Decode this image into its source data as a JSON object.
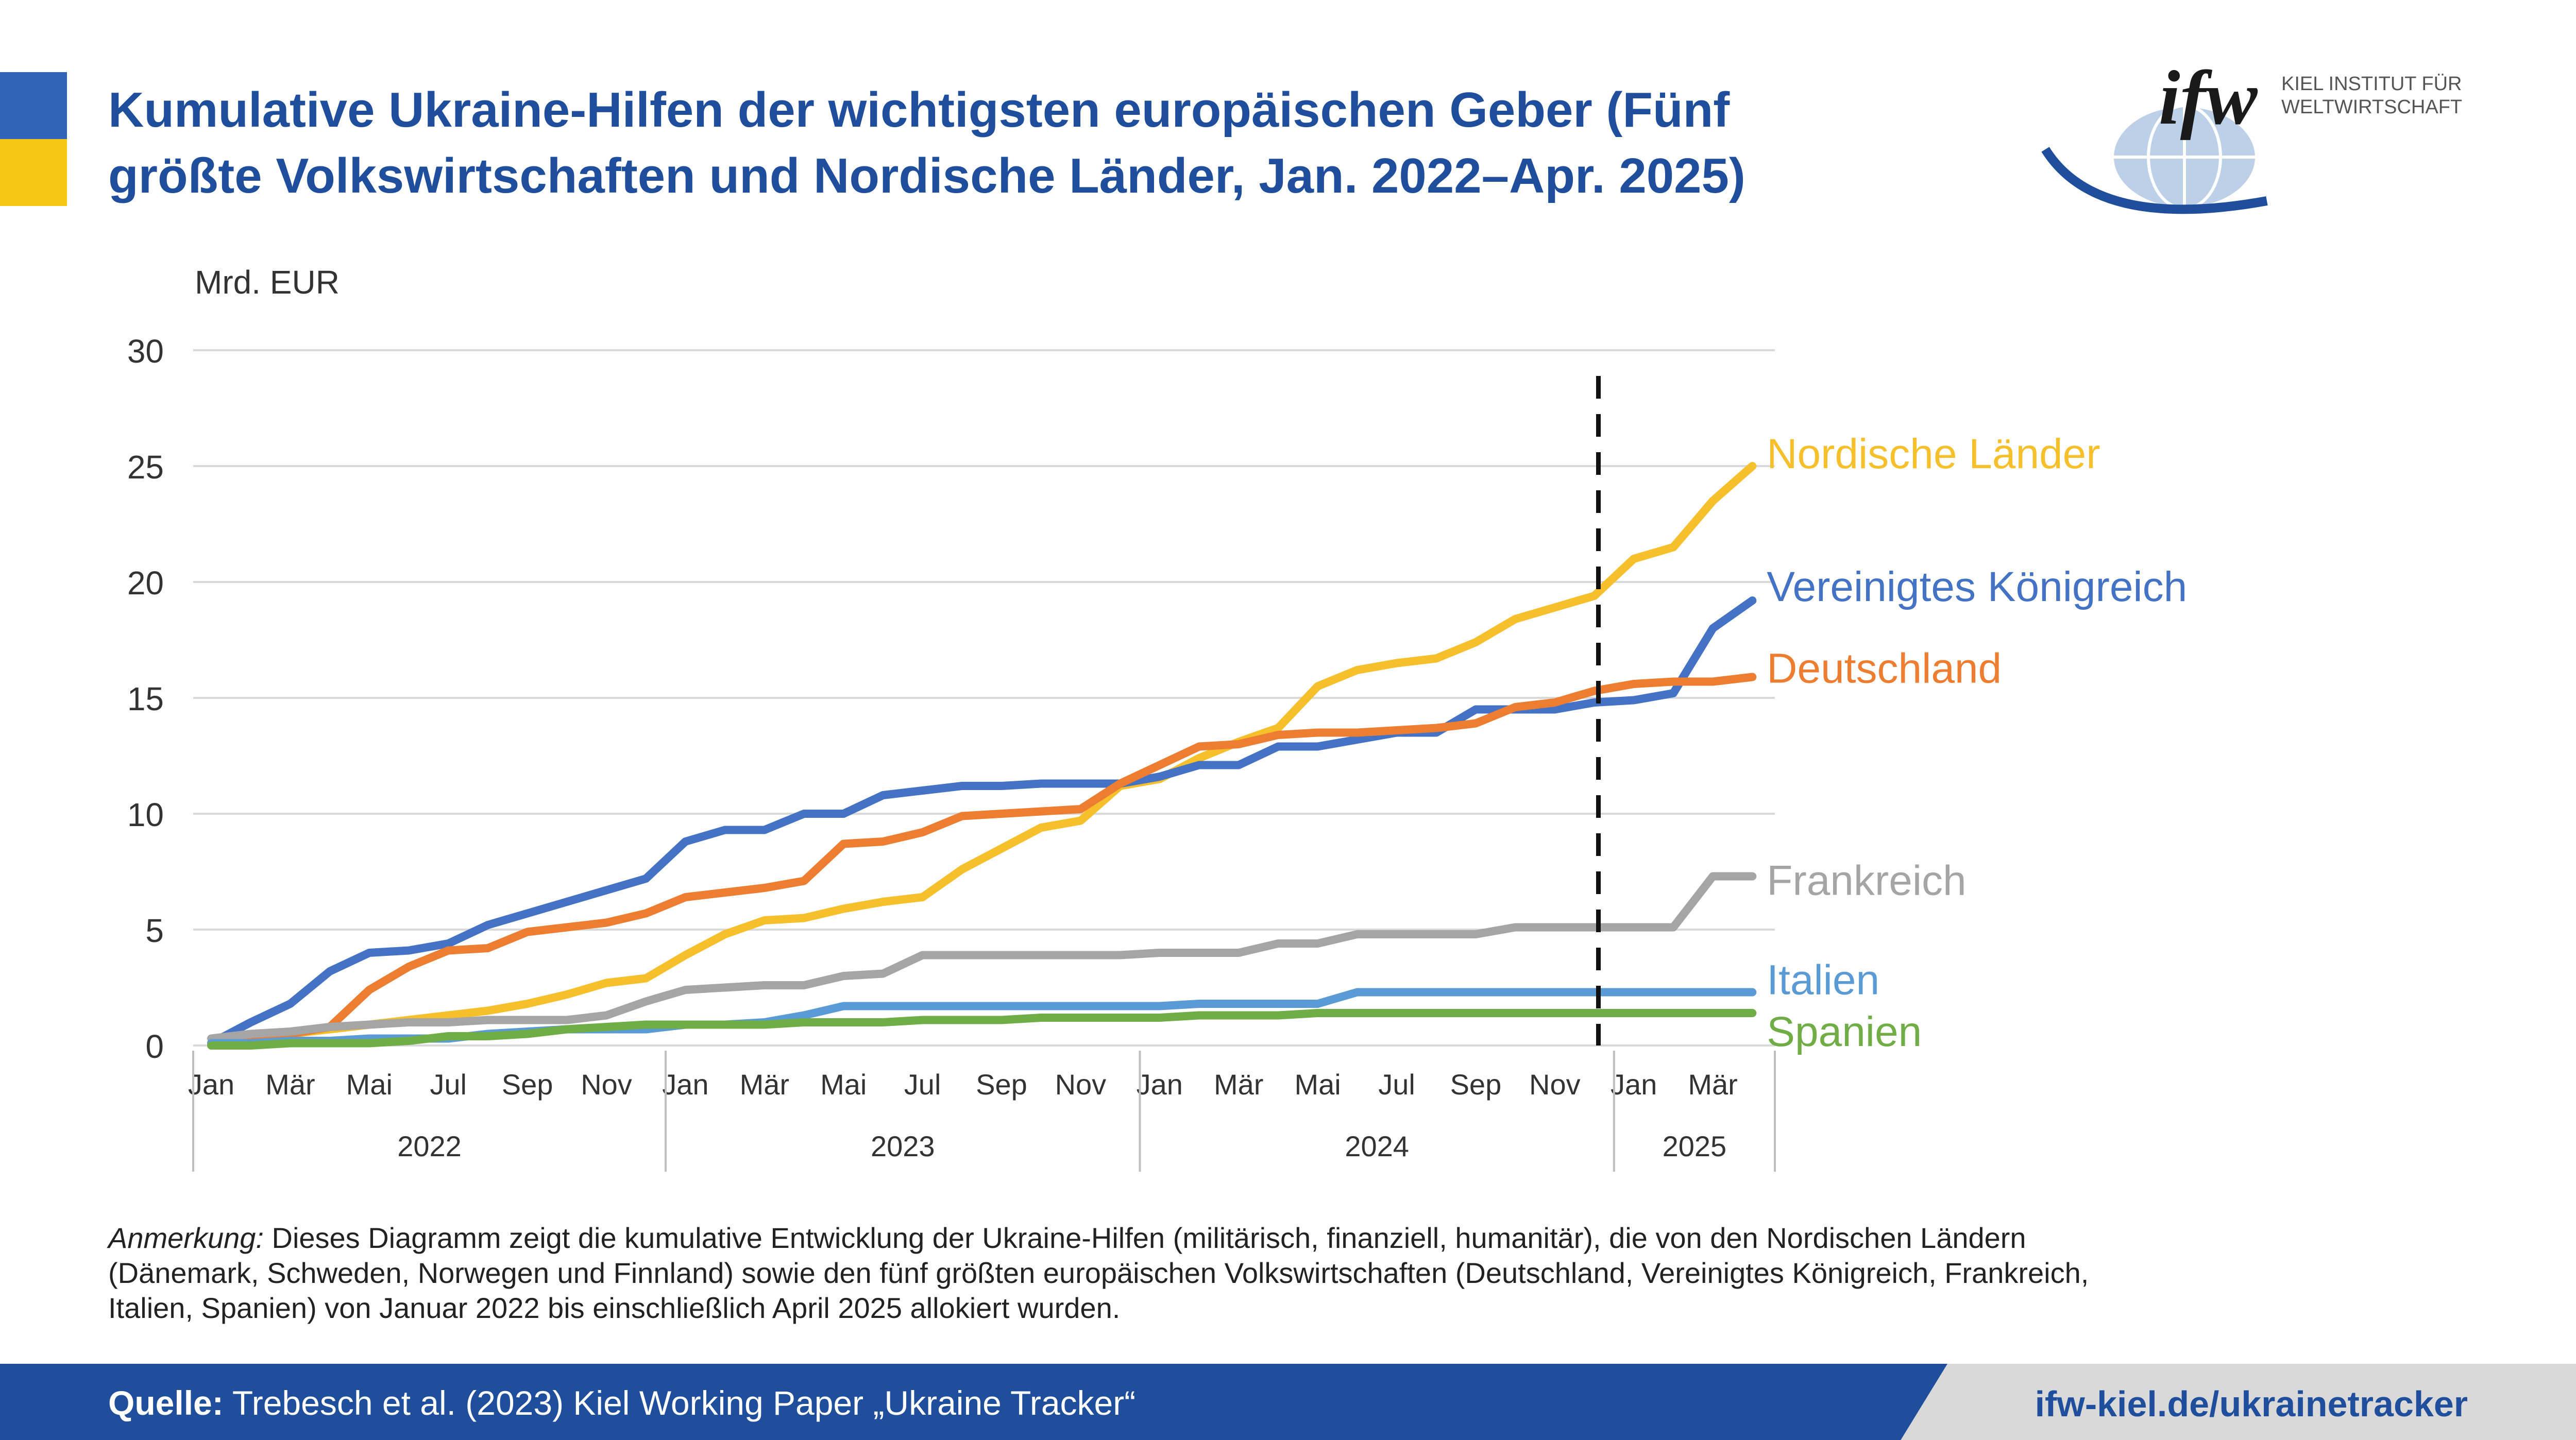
{
  "colors": {
    "brand_blue": "#1f4e9c",
    "flag_blue": "#2f64b8",
    "flag_yellow": "#f6c713",
    "footer_blue": "#1f4e9c",
    "footer_gray": "#d9d9d9",
    "grid": "#d9d9d9"
  },
  "header": {
    "title_line1": "Kumulative Ukraine-Hilfen der wichtigsten europäischen Geber (Fünf",
    "title_line2": "größte Volkswirtschaften und Nordische Länder, Jan. 2022–Apr. 2025)"
  },
  "logo": {
    "mark": "ifw",
    "line1": "KIEL INSTITUT FÜR",
    "line2": "WELTWIRTSCHAFT",
    "icon": "globe-icon"
  },
  "note": {
    "label": "Anmerkung:",
    "text": " Dieses Diagramm zeigt die kumulative Entwicklung der Ukraine-Hilfen (militärisch, finanziell, humanitär), die von den Nordischen Ländern (Dänemark, Schweden, Norwegen und Finnland) sowie den fünf größten europäischen Volkswirtschaften (Deutschland, Vereinigtes Königreich, Frankreich, Italien, Spanien) von Januar 2022 bis einschließlich April 2025 allokiert wurden."
  },
  "footer": {
    "source_label": "Quelle:",
    "source_text": " Trebesch et al. (2023) Kiel Working Paper „Ukraine Tracker“",
    "url": "ifw-kiel.de/ukrainetracker"
  },
  "chart_data": {
    "type": "line",
    "ylabel": "Mrd. EUR",
    "ylim": [
      0,
      30
    ],
    "yticks": [
      "0",
      "5",
      "10",
      "15",
      "20",
      "25",
      "30"
    ],
    "grid": true,
    "legend": "line-end labels",
    "month_tick_labels": [
      "Jan",
      "Mär",
      "Mai",
      "Jul",
      "Sep",
      "Nov",
      "Jan",
      "Mär",
      "Mai",
      "Jul",
      "Sep",
      "Nov",
      "Jan",
      "Mär",
      "Mai",
      "Jul",
      "Sep",
      "Nov",
      "Jan",
      "Mär"
    ],
    "year_labels": [
      "2022",
      "2023",
      "2024",
      "2025"
    ],
    "vertical_marker": "Dez 2024",
    "categories": [
      "Jan 2022",
      "Feb 2022",
      "Mär 2022",
      "Apr 2022",
      "Mai 2022",
      "Jun 2022",
      "Jul 2022",
      "Aug 2022",
      "Sep 2022",
      "Okt 2022",
      "Nov 2022",
      "Dez 2022",
      "Jan 2023",
      "Feb 2023",
      "Mär 2023",
      "Apr 2023",
      "Mai 2023",
      "Jun 2023",
      "Jul 2023",
      "Aug 2023",
      "Sep 2023",
      "Okt 2023",
      "Nov 2023",
      "Dez 2023",
      "Jan 2024",
      "Feb 2024",
      "Mär 2024",
      "Apr 2024",
      "Mai 2024",
      "Jun 2024",
      "Jul 2024",
      "Aug 2024",
      "Sep 2024",
      "Okt 2024",
      "Nov 2024",
      "Dez 2024",
      "Jan 2025",
      "Feb 2025",
      "Mär 2025",
      "Apr 2025"
    ],
    "series": [
      {
        "name": "Nordische Länder",
        "color": "#f6c02c",
        "values": [
          0.1,
          0.3,
          0.5,
          0.7,
          0.9,
          1.1,
          1.3,
          1.5,
          1.8,
          2.2,
          2.7,
          2.9,
          3.9,
          4.8,
          5.4,
          5.5,
          5.9,
          6.2,
          6.4,
          7.6,
          8.5,
          9.4,
          9.7,
          11.2,
          11.5,
          12.4,
          13.1,
          13.7,
          15.5,
          16.2,
          16.5,
          16.7,
          17.4,
          18.4,
          18.9,
          19.4,
          21.0,
          21.5,
          23.5,
          25.0
        ]
      },
      {
        "name": "Vereinigtes Königreich",
        "color": "#4472c4",
        "values": [
          0.1,
          1.0,
          1.8,
          3.2,
          4.0,
          4.1,
          4.4,
          5.2,
          5.7,
          6.2,
          6.7,
          7.2,
          8.8,
          9.3,
          9.3,
          10.0,
          10.0,
          10.8,
          11.0,
          11.2,
          11.2,
          11.3,
          11.3,
          11.3,
          11.6,
          12.1,
          12.1,
          12.9,
          12.9,
          13.2,
          13.5,
          13.5,
          14.5,
          14.5,
          14.5,
          14.8,
          14.9,
          15.2,
          18.0,
          19.2
        ]
      },
      {
        "name": "Deutschland",
        "color": "#ed7d31",
        "values": [
          0.1,
          0.3,
          0.5,
          0.8,
          2.4,
          3.4,
          4.1,
          4.2,
          4.9,
          5.1,
          5.3,
          5.7,
          6.4,
          6.6,
          6.8,
          7.1,
          8.7,
          8.8,
          9.2,
          9.9,
          10.0,
          10.1,
          10.2,
          11.3,
          12.1,
          12.9,
          13.0,
          13.4,
          13.5,
          13.5,
          13.6,
          13.7,
          13.9,
          14.6,
          14.8,
          15.3,
          15.6,
          15.7,
          15.7,
          15.9
        ]
      },
      {
        "name": "Frankreich",
        "color": "#a5a5a5",
        "values": [
          0.3,
          0.5,
          0.6,
          0.8,
          0.9,
          1.0,
          1.0,
          1.1,
          1.1,
          1.1,
          1.3,
          1.9,
          2.4,
          2.5,
          2.6,
          2.6,
          3.0,
          3.1,
          3.9,
          3.9,
          3.9,
          3.9,
          3.9,
          3.9,
          4.0,
          4.0,
          4.0,
          4.4,
          4.4,
          4.8,
          4.8,
          4.8,
          4.8,
          5.1,
          5.1,
          5.1,
          5.1,
          5.1,
          7.3,
          7.3
        ]
      },
      {
        "name": "Italien",
        "color": "#5b9bd5",
        "values": [
          0.1,
          0.1,
          0.2,
          0.2,
          0.3,
          0.3,
          0.3,
          0.5,
          0.6,
          0.7,
          0.7,
          0.7,
          0.9,
          0.9,
          1.0,
          1.3,
          1.7,
          1.7,
          1.7,
          1.7,
          1.7,
          1.7,
          1.7,
          1.7,
          1.7,
          1.8,
          1.8,
          1.8,
          1.8,
          2.3,
          2.3,
          2.3,
          2.3,
          2.3,
          2.3,
          2.3,
          2.3,
          2.3,
          2.3,
          2.3
        ]
      },
      {
        "name": "Spanien",
        "color": "#70ad47",
        "values": [
          0.0,
          0.0,
          0.1,
          0.1,
          0.1,
          0.2,
          0.4,
          0.4,
          0.5,
          0.7,
          0.8,
          0.9,
          0.9,
          0.9,
          0.9,
          1.0,
          1.0,
          1.0,
          1.1,
          1.1,
          1.1,
          1.2,
          1.2,
          1.2,
          1.2,
          1.3,
          1.3,
          1.3,
          1.4,
          1.4,
          1.4,
          1.4,
          1.4,
          1.4,
          1.4,
          1.4,
          1.4,
          1.4,
          1.4,
          1.4
        ]
      }
    ]
  }
}
